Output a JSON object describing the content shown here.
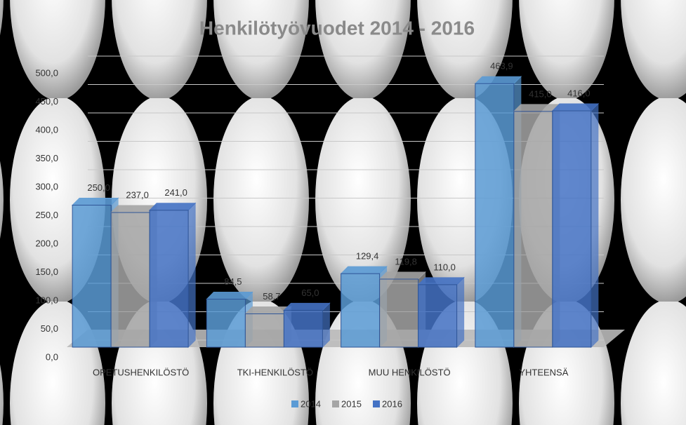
{
  "chart_data": {
    "type": "bar",
    "title": "Henkilötyövuodet 2014 - 2016",
    "categories": [
      "OPETUSHENKILÖSTÖ",
      "TKI-HENKILÖSTÖ",
      "MUU HENKILÖSTÖ",
      "YHTEENSÄ"
    ],
    "series": [
      {
        "name": "2014",
        "color": "#5b9bd5",
        "values": [
          250.0,
          84.5,
          129.4,
          463.9
        ],
        "value_labels": [
          "250,0",
          "84,5",
          "129,4",
          "463,9"
        ]
      },
      {
        "name": "2015",
        "color": "#a5a5a5",
        "values": [
          237.0,
          58.7,
          119.8,
          415.0
        ],
        "value_labels": [
          "237,0",
          "58,7",
          "119,8",
          "415,0"
        ]
      },
      {
        "name": "2016",
        "color": "#4472c4",
        "values": [
          241.0,
          65.0,
          110.0,
          416.0
        ],
        "value_labels": [
          "241,0",
          "65,0",
          "110,0",
          "416,0"
        ]
      }
    ],
    "ylim": [
      0,
      500
    ],
    "yticks": [
      {
        "value": 0,
        "label": "0,0"
      },
      {
        "value": 50,
        "label": "50,0"
      },
      {
        "value": 100,
        "label": "100,0"
      },
      {
        "value": 150,
        "label": "150,0"
      },
      {
        "value": 200,
        "label": "200,0"
      },
      {
        "value": 250,
        "label": "250,0"
      },
      {
        "value": 300,
        "label": "300,0"
      },
      {
        "value": 350,
        "label": "350,0"
      },
      {
        "value": 400,
        "label": "400,0"
      },
      {
        "value": 450,
        "label": "450,0"
      },
      {
        "value": 500,
        "label": "500,0"
      }
    ],
    "grid": true,
    "legend": "bottom"
  }
}
